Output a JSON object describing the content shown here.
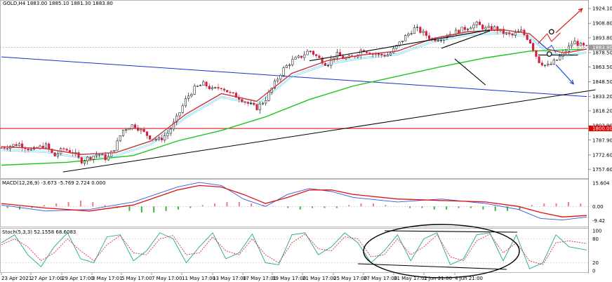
{
  "window": {
    "header_label": "GOLD,H4  1883.00 1885.10 1881.30 1883.80",
    "macd_label": "MACD(12,26,9) -3.673 -5.769 2.724 0.000",
    "stoch_label": "Stoch(5,3,3) 52.1558 68.6083"
  },
  "colors": {
    "bull": "#000000",
    "bear": "#d01f3c",
    "ema_fast": "#e03030",
    "ema_band": "#55d0f0",
    "ma_slow": "#1fc41f",
    "blue_line": "#1f2fd0",
    "trend_line": "#000000",
    "hline_red": "#e00000",
    "macd_line": "#3a52e0",
    "signal_line": "#e01010",
    "stoch_main": "#20a890",
    "stoch_signal": "#e03030"
  },
  "chart_data": [
    {
      "type": "candlestick",
      "symbol": "GOLD",
      "timeframe": "H4",
      "ylim": [
        1750,
        1930
      ],
      "y_ticks": [
        "1924.10",
        "1908.80",
        "1893.80",
        "1878.50",
        "1863.50",
        "1848.50",
        "1833.20",
        "1818.20",
        "1802.90",
        "1787.90",
        "1772.60",
        "1757.60"
      ],
      "x_ticks": [
        "23 Apr 2021",
        "27 Apr 17:00",
        "29 Apr 17:00",
        "3 May 17:01",
        "5 May 17:00",
        "7 May 17:00",
        "11 May 17:00",
        "13 May 17:00",
        "17 May 17:01",
        "19 May 17:00",
        "21 May 17:00",
        "25 May 17:00",
        "27 May 17:00",
        "31 May 17:01",
        "2 Jun 21:00",
        "4 Jun 21:00"
      ],
      "current_price": "1883.80",
      "horizontal_level": "1800.00",
      "close_path": [
        [
          0,
          1780
        ],
        [
          8,
          1784
        ],
        [
          14,
          1777
        ],
        [
          20,
          1783
        ],
        [
          24,
          1771
        ],
        [
          28,
          1779
        ],
        [
          33,
          1775
        ],
        [
          36,
          1766
        ],
        [
          40,
          1770
        ],
        [
          44,
          1774
        ],
        [
          48,
          1768
        ],
        [
          52,
          1782
        ],
        [
          55,
          1798
        ],
        [
          60,
          1804
        ],
        [
          64,
          1797
        ],
        [
          68,
          1790
        ],
        [
          72,
          1788
        ],
        [
          76,
          1796
        ],
        [
          80,
          1812
        ],
        [
          84,
          1831
        ],
        [
          88,
          1842
        ],
        [
          92,
          1846
        ],
        [
          96,
          1840
        ],
        [
          100,
          1843
        ],
        [
          104,
          1836
        ],
        [
          108,
          1832
        ],
        [
          112,
          1826
        ],
        [
          116,
          1821
        ],
        [
          120,
          1830
        ],
        [
          124,
          1846
        ],
        [
          128,
          1861
        ],
        [
          132,
          1870
        ],
        [
          136,
          1874
        ],
        [
          140,
          1881
        ],
        [
          144,
          1873
        ],
        [
          148,
          1866
        ],
        [
          152,
          1877
        ],
        [
          156,
          1872
        ],
        [
          160,
          1874
        ],
        [
          164,
          1882
        ],
        [
          168,
          1878
        ],
        [
          172,
          1876
        ],
        [
          176,
          1876
        ],
        [
          180,
          1886
        ],
        [
          184,
          1896
        ],
        [
          188,
          1904
        ],
        [
          192,
          1898
        ],
        [
          196,
          1892
        ],
        [
          200,
          1894
        ],
        [
          204,
          1898
        ],
        [
          208,
          1901
        ],
        [
          212,
          1905
        ],
        [
          216,
          1908
        ],
        [
          220,
          1903
        ],
        [
          224,
          1904
        ],
        [
          228,
          1899
        ],
        [
          232,
          1896
        ],
        [
          236,
          1901
        ],
        [
          240,
          1891
        ],
        [
          244,
          1870
        ],
        [
          248,
          1864
        ],
        [
          252,
          1870
        ],
        [
          256,
          1879
        ],
        [
          260,
          1890
        ],
        [
          264,
          1885
        ],
        [
          266,
          1883.8
        ]
      ],
      "ema_fast_path": [
        [
          0,
          1781
        ],
        [
          20,
          1779
        ],
        [
          36,
          1773
        ],
        [
          52,
          1775
        ],
        [
          68,
          1787
        ],
        [
          84,
          1815
        ],
        [
          100,
          1836
        ],
        [
          116,
          1828
        ],
        [
          132,
          1857
        ],
        [
          148,
          1870
        ],
        [
          164,
          1876
        ],
        [
          180,
          1880
        ],
        [
          196,
          1893
        ],
        [
          212,
          1900
        ],
        [
          228,
          1902
        ],
        [
          240,
          1898
        ],
        [
          248,
          1882
        ],
        [
          256,
          1878
        ],
        [
          266,
          1882
        ]
      ],
      "ma_slow_path": [
        [
          0,
          1762
        ],
        [
          30,
          1765
        ],
        [
          60,
          1772
        ],
        [
          80,
          1787
        ],
        [
          100,
          1798
        ],
        [
          120,
          1812
        ],
        [
          140,
          1830
        ],
        [
          160,
          1844
        ],
        [
          180,
          1854
        ],
        [
          200,
          1864
        ],
        [
          220,
          1873
        ],
        [
          240,
          1880
        ],
        [
          266,
          1882
        ]
      ],
      "blue_line": [
        [
          0,
          1874
        ],
        [
          266,
          1833
        ]
      ],
      "support_line": [
        [
          28,
          1755
        ],
        [
          270,
          1840
        ]
      ],
      "upper_channel": [
        [
          140,
          1870
        ],
        [
          222,
          1902
        ]
      ],
      "wedge_top": [
        [
          200,
          1883
        ],
        [
          222,
          1901
        ]
      ],
      "wedge_bottom": [
        [
          206,
          1872
        ],
        [
          220,
          1845
        ]
      ],
      "neckline": [
        [
          244,
          1876
        ],
        [
          262,
          1876
        ]
      ],
      "arrows": [
        {
          "direction": "up",
          "color": "red",
          "from": [
            252,
            1899
          ],
          "to": [
            264,
            1924
          ]
        },
        {
          "direction": "down",
          "color": "blue",
          "from": [
            252,
            1866
          ],
          "to": [
            260,
            1846
          ]
        }
      ]
    },
    {
      "type": "line",
      "name": "MACD(12,26,9)",
      "ylim": [
        -12,
        17
      ],
      "y_ticks": [
        "15.604",
        "0.00",
        "-9.42"
      ],
      "macd_path": [
        [
          0,
          1
        ],
        [
          20,
          -3
        ],
        [
          40,
          -2
        ],
        [
          60,
          3
        ],
        [
          80,
          13
        ],
        [
          90,
          16
        ],
        [
          100,
          14
        ],
        [
          110,
          5
        ],
        [
          120,
          0
        ],
        [
          130,
          8
        ],
        [
          140,
          12
        ],
        [
          150,
          10
        ],
        [
          160,
          6
        ],
        [
          180,
          3
        ],
        [
          200,
          5
        ],
        [
          220,
          2
        ],
        [
          235,
          -2
        ],
        [
          245,
          -8
        ],
        [
          255,
          -9
        ],
        [
          266,
          -7
        ]
      ],
      "signal_path": [
        [
          0,
          2
        ],
        [
          20,
          -1
        ],
        [
          40,
          -3
        ],
        [
          60,
          1
        ],
        [
          80,
          11
        ],
        [
          90,
          14
        ],
        [
          100,
          13
        ],
        [
          110,
          8
        ],
        [
          120,
          2
        ],
        [
          130,
          6
        ],
        [
          140,
          11
        ],
        [
          150,
          11
        ],
        [
          160,
          8
        ],
        [
          180,
          5
        ],
        [
          200,
          4
        ],
        [
          220,
          3
        ],
        [
          235,
          0
        ],
        [
          245,
          -4
        ],
        [
          255,
          -7
        ],
        [
          266,
          -6
        ]
      ],
      "histogram": [
        -1,
        -2,
        -1,
        1,
        2,
        3,
        4,
        3,
        1,
        -1,
        -3,
        -4,
        -4,
        -3,
        -2,
        -1,
        1,
        2,
        3,
        3,
        2,
        1,
        0,
        -1,
        -2,
        -1,
        -1,
        -1,
        1,
        2,
        2,
        1,
        0,
        -1,
        -1,
        -2,
        -2,
        -1,
        -1,
        -2,
        -3,
        -3,
        -2,
        1,
        2,
        2,
        3,
        2
      ]
    },
    {
      "type": "line",
      "name": "Stoch(5,3,3)",
      "ylim": [
        0,
        100
      ],
      "y_ticks": [
        "100",
        "80",
        "20",
        "0"
      ],
      "main_path": [
        [
          0,
          70
        ],
        [
          6,
          90
        ],
        [
          12,
          40
        ],
        [
          18,
          10
        ],
        [
          24,
          60
        ],
        [
          30,
          95
        ],
        [
          36,
          30
        ],
        [
          42,
          20
        ],
        [
          48,
          85
        ],
        [
          54,
          90
        ],
        [
          60,
          25
        ],
        [
          66,
          50
        ],
        [
          72,
          95
        ],
        [
          78,
          80
        ],
        [
          84,
          20
        ],
        [
          90,
          60
        ],
        [
          96,
          95
        ],
        [
          102,
          30
        ],
        [
          108,
          45
        ],
        [
          114,
          92
        ],
        [
          120,
          20
        ],
        [
          126,
          15
        ],
        [
          132,
          90
        ],
        [
          138,
          95
        ],
        [
          144,
          40
        ],
        [
          150,
          60
        ],
        [
          156,
          95
        ],
        [
          162,
          70
        ],
        [
          168,
          20
        ],
        [
          174,
          50
        ],
        [
          180,
          90
        ],
        [
          186,
          25
        ],
        [
          192,
          80
        ],
        [
          198,
          95
        ],
        [
          204,
          15
        ],
        [
          210,
          30
        ],
        [
          216,
          90
        ],
        [
          222,
          95
        ],
        [
          228,
          25
        ],
        [
          234,
          90
        ],
        [
          240,
          5
        ],
        [
          246,
          20
        ],
        [
          252,
          90
        ],
        [
          258,
          60
        ],
        [
          266,
          52
        ]
      ],
      "signal_path": [
        [
          0,
          65
        ],
        [
          6,
          80
        ],
        [
          12,
          60
        ],
        [
          18,
          25
        ],
        [
          24,
          45
        ],
        [
          30,
          80
        ],
        [
          36,
          50
        ],
        [
          42,
          25
        ],
        [
          48,
          65
        ],
        [
          54,
          88
        ],
        [
          60,
          45
        ],
        [
          66,
          40
        ],
        [
          72,
          80
        ],
        [
          78,
          88
        ],
        [
          84,
          40
        ],
        [
          90,
          45
        ],
        [
          96,
          85
        ],
        [
          102,
          50
        ],
        [
          108,
          40
        ],
        [
          114,
          80
        ],
        [
          120,
          40
        ],
        [
          126,
          20
        ],
        [
          132,
          70
        ],
        [
          138,
          92
        ],
        [
          144,
          55
        ],
        [
          150,
          50
        ],
        [
          156,
          85
        ],
        [
          162,
          80
        ],
        [
          168,
          35
        ],
        [
          174,
          40
        ],
        [
          180,
          80
        ],
        [
          186,
          40
        ],
        [
          192,
          60
        ],
        [
          198,
          90
        ],
        [
          204,
          35
        ],
        [
          210,
          25
        ],
        [
          216,
          75
        ],
        [
          222,
          92
        ],
        [
          228,
          45
        ],
        [
          234,
          70
        ],
        [
          240,
          25
        ],
        [
          246,
          15
        ],
        [
          252,
          70
        ],
        [
          258,
          75
        ],
        [
          266,
          68
        ]
      ],
      "overbought": 80,
      "oversold": 20
    }
  ]
}
